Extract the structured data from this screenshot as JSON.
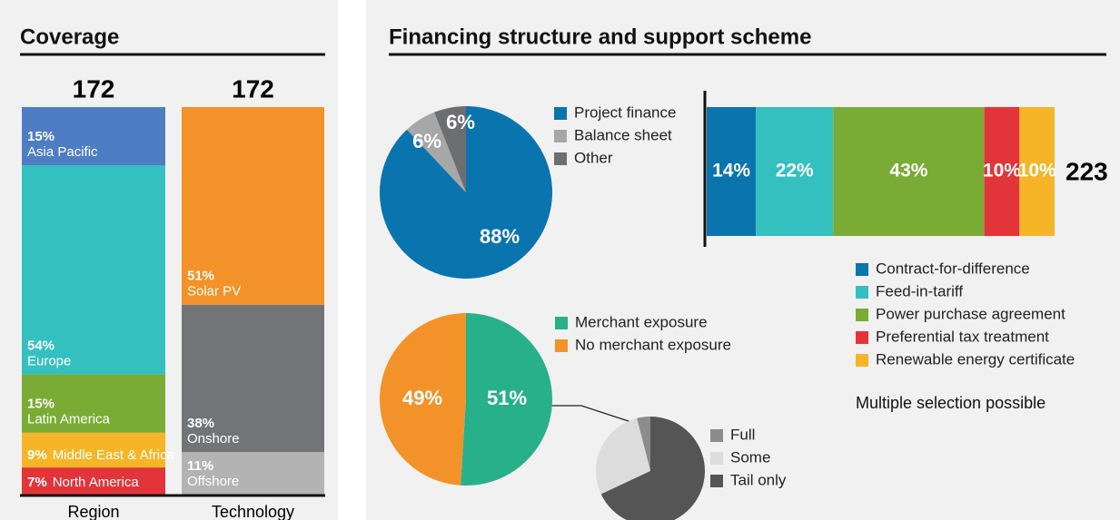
{
  "headings": [
    "Coverage",
    "Financing structure and support scheme"
  ],
  "chart_data": [
    {
      "type": "stacked-column",
      "xlabel": "Region",
      "total": 172,
      "categories": [
        "Asia Pacific",
        "Europe",
        "Latin America",
        "Middle East & Africa",
        "North America"
      ],
      "values": [
        15,
        54,
        15,
        9,
        7
      ],
      "value_labels": [
        "15%",
        "54%",
        "15%",
        "9%",
        "7%"
      ],
      "colors": [
        "#4e7dc4",
        "#35c0c0",
        "#7aab35",
        "#f5b526",
        "#e3343a"
      ]
    },
    {
      "type": "stacked-column",
      "xlabel": "Technology",
      "total": 172,
      "categories": [
        "Solar PV",
        "Onshore",
        "Offshore"
      ],
      "values": [
        51,
        38,
        11
      ],
      "value_labels": [
        "51%",
        "38%",
        "11%"
      ],
      "colors": [
        "#f39229",
        "#737478",
        "#b3b3b3"
      ]
    },
    {
      "type": "pie",
      "categories": [
        "Project finance",
        "Balance sheet",
        "Other"
      ],
      "values": [
        88,
        6,
        6
      ],
      "value_labels": [
        "88%",
        "6%",
        "6%"
      ],
      "colors": [
        "#0a74ae",
        "#a7a7a7",
        "#6d6e70"
      ]
    },
    {
      "type": "stacked-bar",
      "total": 223,
      "note": "Multiple selection possible",
      "categories": [
        "Contract-for-difference",
        "Feed-in-tariff",
        "Power purchase agreement",
        "Preferential tax treatment",
        "Renewable energy certificate"
      ],
      "values": [
        14,
        22,
        43,
        10,
        10
      ],
      "value_labels": [
        "14%",
        "22%",
        "43%",
        "10%",
        "10%"
      ],
      "colors": [
        "#0a74ae",
        "#35c0c0",
        "#7aab35",
        "#e3343a",
        "#f5b526"
      ]
    },
    {
      "type": "pie",
      "categories": [
        "Merchant exposure",
        "No merchant exposure"
      ],
      "values": [
        51,
        49
      ],
      "value_labels": [
        "51%",
        "49%"
      ],
      "colors": [
        "#27b08a",
        "#f39229"
      ]
    },
    {
      "type": "pie",
      "categories": [
        "Full",
        "Some",
        "Tail only"
      ],
      "values": [
        4,
        28,
        68
      ],
      "colors": [
        "#8c8c8c",
        "#dcdcdc",
        "#555555"
      ]
    }
  ]
}
